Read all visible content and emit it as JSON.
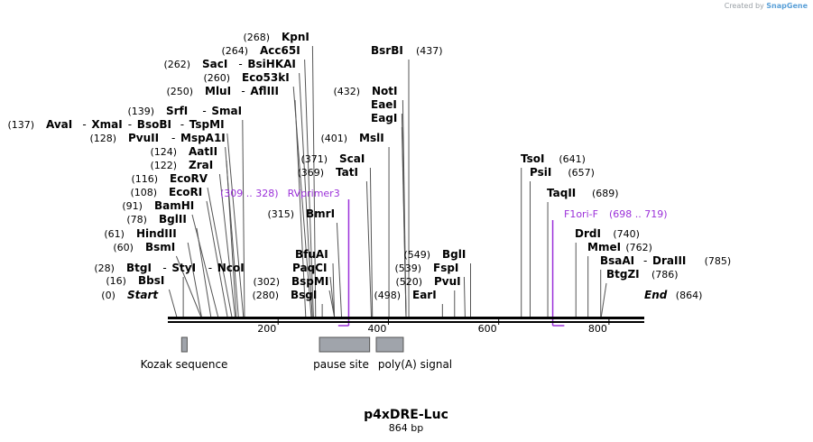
{
  "credit": {
    "prefix": "Created by",
    "brand": "SnapGene"
  },
  "title": "p4xDRE-Luc",
  "length_label": "864 bp",
  "total_bp": 864,
  "ruler_ticks": [
    "200",
    "400",
    "600",
    "800"
  ],
  "colors": {
    "enzyme_line": "#555555",
    "primer": "#9b30d9",
    "feature_fill": "#a0a4ab",
    "feature_stroke": "#555555",
    "text": "#000000"
  },
  "sites": [
    {
      "pos": 0,
      "label_num": "(0)",
      "names": [
        "Start"
      ],
      "italic": true
    },
    {
      "pos": 16,
      "label_num": "(16)",
      "names": [
        "BbsI"
      ]
    },
    {
      "pos": 28,
      "label_num": "(28)",
      "names": [
        "BtgI",
        "StyI",
        "NcoI"
      ]
    },
    {
      "pos": 60,
      "label_num": "(60)",
      "names": [
        "BsmI"
      ]
    },
    {
      "pos": 61,
      "label_num": "(61)",
      "names": [
        "HindIII"
      ]
    },
    {
      "pos": 78,
      "label_num": "(78)",
      "names": [
        "BglII"
      ]
    },
    {
      "pos": 91,
      "label_num": "(91)",
      "names": [
        "BamHI"
      ]
    },
    {
      "pos": 108,
      "label_num": "(108)",
      "names": [
        "EcoRI"
      ]
    },
    {
      "pos": 116,
      "label_num": "(116)",
      "names": [
        "EcoRV"
      ]
    },
    {
      "pos": 122,
      "label_num": "(122)",
      "names": [
        "ZraI"
      ]
    },
    {
      "pos": 124,
      "label_num": "(124)",
      "names": [
        "AatII"
      ]
    },
    {
      "pos": 128,
      "label_num": "(128)",
      "names": [
        "PvuII",
        "MspA1I"
      ]
    },
    {
      "pos": 137,
      "label_num": "(137)",
      "names": [
        "AvaI",
        "XmaI",
        "BsoBI",
        "TspMI"
      ]
    },
    {
      "pos": 139,
      "label_num": "(139)",
      "names": [
        "SrfI",
        "SmaI"
      ]
    },
    {
      "pos": 250,
      "label_num": "(250)",
      "names": [
        "MluI",
        "AflIII"
      ]
    },
    {
      "pos": 260,
      "label_num": "(260)",
      "names": [
        "Eco53kI"
      ]
    },
    {
      "pos": 262,
      "label_num": "(262)",
      "names": [
        "SacI",
        "BsiHKAI"
      ]
    },
    {
      "pos": 264,
      "label_num": "(264)",
      "names": [
        "Acc65I"
      ]
    },
    {
      "pos": 268,
      "label_num": "(268)",
      "names": [
        "KpnI"
      ]
    },
    {
      "pos": 280,
      "label_num": "(280)",
      "names": [
        "BsgI"
      ]
    },
    {
      "pos": 302,
      "label_num": "(302)",
      "names": [
        "BspMI"
      ]
    },
    {
      "pos": 302,
      "label_num": "",
      "names": [
        "PaqCI"
      ]
    },
    {
      "pos": 302,
      "label_num": "",
      "names": [
        "BfuAI"
      ]
    },
    {
      "pos": 315,
      "label_num": "(315)",
      "names": [
        "BmrI"
      ]
    },
    {
      "pos": 369,
      "label_num": "(369)",
      "names": [
        "TatI"
      ]
    },
    {
      "pos": 371,
      "label_num": "(371)",
      "names": [
        "ScaI"
      ]
    },
    {
      "pos": 401,
      "label_num": "(401)",
      "names": [
        "MslI"
      ]
    },
    {
      "pos": 432,
      "label_num": "",
      "names": [
        "EagI"
      ]
    },
    {
      "pos": 432,
      "label_num": "",
      "names": [
        "EaeI"
      ]
    },
    {
      "pos": 432,
      "label_num": "(432)",
      "names": [
        "NotI"
      ]
    },
    {
      "pos": 437,
      "label_num": "(437)",
      "names": [
        "BsrBI"
      ]
    },
    {
      "pos": 498,
      "label_num": "(498)",
      "names": [
        "EarI"
      ]
    },
    {
      "pos": 520,
      "label_num": "(520)",
      "names": [
        "PvuI"
      ]
    },
    {
      "pos": 539,
      "label_num": "(539)",
      "names": [
        "FspI"
      ]
    },
    {
      "pos": 549,
      "label_num": "(549)",
      "names": [
        "BglI"
      ]
    },
    {
      "pos": 641,
      "label_num": "(641)",
      "names": [
        "TsoI"
      ]
    },
    {
      "pos": 657,
      "label_num": "(657)",
      "names": [
        "PsiI"
      ]
    },
    {
      "pos": 689,
      "label_num": "(689)",
      "names": [
        "TaqII"
      ]
    },
    {
      "pos": 740,
      "label_num": "(740)",
      "names": [
        "DrdI"
      ]
    },
    {
      "pos": 762,
      "label_num": "(762)",
      "names": [
        "MmeI"
      ]
    },
    {
      "pos": 785,
      "label_num": "(785)",
      "names": [
        "BsaAI",
        "DraIII"
      ]
    },
    {
      "pos": 786,
      "label_num": "(786)",
      "names": [
        "BtgZI"
      ]
    },
    {
      "pos": 864,
      "label_num": "(864)",
      "names": [
        "End"
      ],
      "italic": true
    }
  ],
  "primers": [
    {
      "name": "RVprimer3",
      "range": "(309 .. 328)",
      "start": 309,
      "end": 328,
      "direction": "reverse"
    },
    {
      "name": "F1ori-F",
      "range": "(698 .. 719)",
      "start": 698,
      "end": 719,
      "direction": "forward"
    }
  ],
  "features": [
    {
      "name": "Kozak sequence",
      "start": 25,
      "end": 35
    },
    {
      "name": "pause site",
      "start": 275,
      "end": 366
    },
    {
      "name": "poly(A) signal",
      "start": 378,
      "end": 427
    }
  ]
}
